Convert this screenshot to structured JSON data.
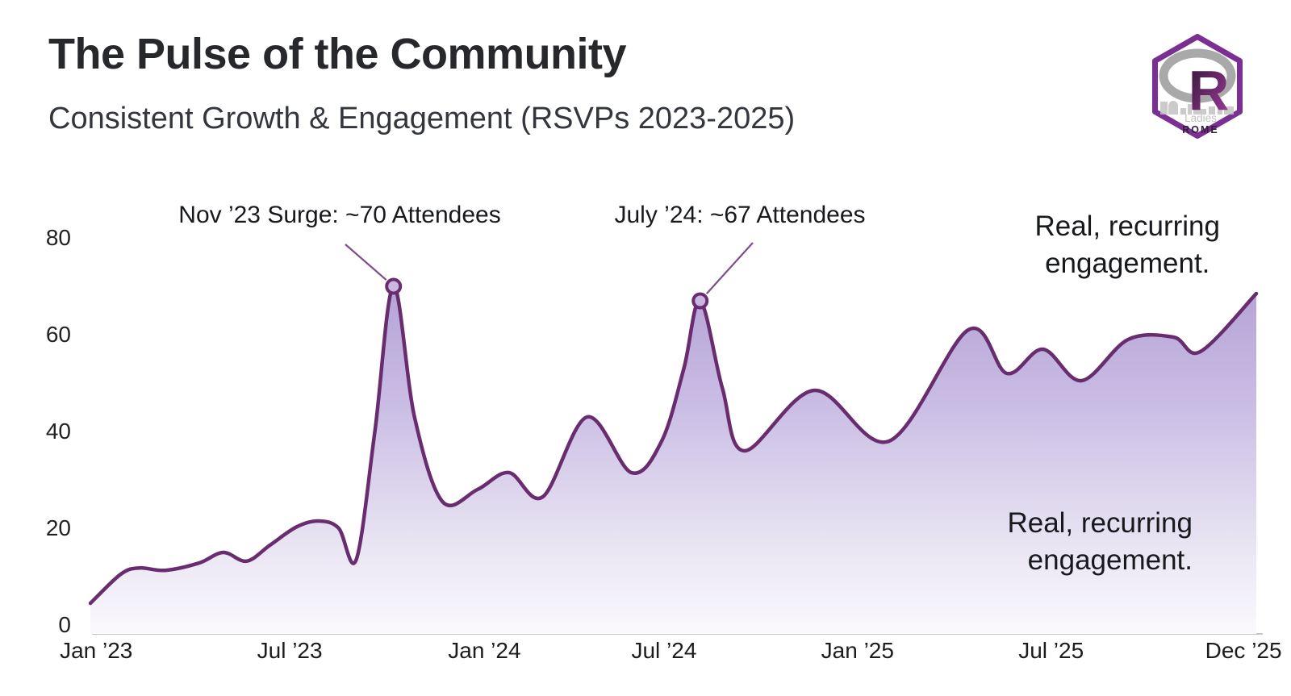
{
  "header": {
    "title": "The Pulse of the Community",
    "subtitle": "Consistent Growth & Engagement (RSVPs 2023-2025)"
  },
  "logo": {
    "letter": "R",
    "ladies_label": "Ladies",
    "city_label": "ROME",
    "accent": "#7b2f92",
    "ring_gray": "#a9a9a9",
    "r_dark": "#2e1733",
    "r_light": "#a43a9e",
    "skyline_gray": "#c3c3c3"
  },
  "callouts": {
    "top": [
      "Real, recurring",
      "engagement."
    ],
    "bottom": [
      "Real, recurring",
      "engagement."
    ]
  },
  "chart_data": {
    "type": "area",
    "title": "Consistent Growth & Engagement (RSVPs 2023-2025)",
    "ylim": [
      0,
      80
    ],
    "yticks": [
      80,
      60,
      40,
      20,
      0
    ],
    "xticks": [
      {
        "label": "Jan ’23",
        "t": 0.005
      },
      {
        "label": "Jul ’23",
        "t": 0.171
      },
      {
        "label": "Jan ’24",
        "t": 0.338
      },
      {
        "label": "Jul ’24",
        "t": 0.492
      },
      {
        "label": "Jan ’25",
        "t": 0.658
      },
      {
        "label": "Jul ’25",
        "t": 0.824
      },
      {
        "label": "Dec ’25",
        "t": 0.989
      }
    ],
    "grid": false,
    "legend": false,
    "points": [
      [
        0.0,
        4.5
      ],
      [
        0.026,
        10.5
      ],
      [
        0.042,
        11.8
      ],
      [
        0.064,
        11.3
      ],
      [
        0.093,
        12.8
      ],
      [
        0.114,
        15.0
      ],
      [
        0.134,
        13.2
      ],
      [
        0.154,
        16.5
      ],
      [
        0.177,
        20.3
      ],
      [
        0.196,
        21.5
      ],
      [
        0.213,
        20.0
      ],
      [
        0.228,
        13.5
      ],
      [
        0.244,
        40.0
      ],
      [
        0.26,
        70.0
      ],
      [
        0.278,
        43.0
      ],
      [
        0.302,
        25.5
      ],
      [
        0.332,
        28.0
      ],
      [
        0.359,
        31.5
      ],
      [
        0.388,
        26.5
      ],
      [
        0.426,
        43.0
      ],
      [
        0.464,
        31.5
      ],
      [
        0.49,
        38.0
      ],
      [
        0.509,
        53.0
      ],
      [
        0.523,
        67.0
      ],
      [
        0.542,
        49.0
      ],
      [
        0.561,
        36.0
      ],
      [
        0.621,
        48.5
      ],
      [
        0.685,
        38.0
      ],
      [
        0.753,
        61.0
      ],
      [
        0.786,
        52.0
      ],
      [
        0.817,
        57.0
      ],
      [
        0.85,
        50.5
      ],
      [
        0.89,
        59.0
      ],
      [
        0.929,
        59.5
      ],
      [
        0.952,
        56.5
      ],
      [
        1.0,
        68.5
      ]
    ],
    "highlights": [
      {
        "label": "Nov ’23 Surge: ~70 Attendees",
        "t": 0.26,
        "value": 70
      },
      {
        "label": "July ’24: ~67 Attendees",
        "t": 0.523,
        "value": 67
      }
    ],
    "colors": {
      "line": "#682c6f",
      "leader": "#7d4f8a",
      "marker_fill": "#cbb6e2",
      "area_top": "#b2a0d4",
      "area_mid1": "#c9bce4",
      "area_mid2": "#e9e5f3",
      "area_bottom": "#fbfafd",
      "axis_line": "#c6c6c6"
    }
  }
}
